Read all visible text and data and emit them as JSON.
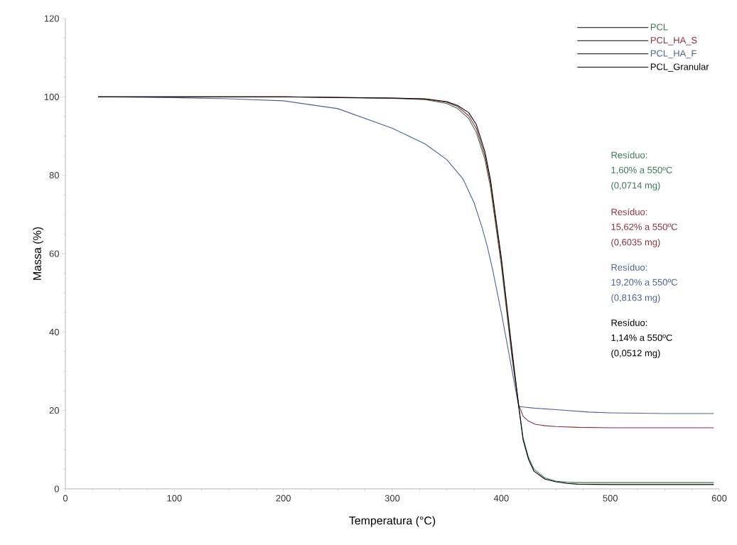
{
  "chart_data": {
    "type": "line",
    "xlabel": "Temperatura  (°C)",
    "ylabel": "Massa (%)",
    "xlim": [
      0,
      600
    ],
    "ylim": [
      0,
      120
    ],
    "xticks": [
      0,
      100,
      200,
      300,
      400,
      500,
      600
    ],
    "yticks": [
      0,
      20,
      40,
      60,
      80,
      100,
      120
    ],
    "grid": false,
    "legend": "top right",
    "line_style": "solid",
    "series": [
      {
        "name": "PCL",
        "color": "#3d7a52",
        "x": [
          30,
          100,
          200,
          300,
          330,
          350,
          360,
          370,
          377,
          385,
          390,
          395,
          400,
          405,
          410,
          416,
          420,
          425,
          430,
          440,
          450,
          460,
          470,
          500,
          550,
          595
        ],
        "values": [
          100,
          100,
          100,
          99.6,
          99.3,
          98.3,
          97,
          94.5,
          91,
          84,
          77,
          67,
          57,
          45,
          33,
          21,
          13,
          8,
          5,
          2.8,
          2,
          1.7,
          1.6,
          1.6,
          1.6,
          1.6
        ]
      },
      {
        "name": "PCL_HA_S",
        "color": "#8e2f3b",
        "x": [
          30,
          100,
          200,
          300,
          330,
          350,
          360,
          370,
          377,
          385,
          390,
          395,
          400,
          405,
          410,
          416,
          420,
          425,
          431,
          440,
          450,
          470,
          500,
          550,
          595
        ],
        "values": [
          100,
          100,
          100,
          99.7,
          99.4,
          98.6,
          97.5,
          95.2,
          92,
          85,
          78,
          68,
          58,
          46,
          34,
          21.5,
          18.5,
          17.3,
          16.5,
          16.1,
          15.9,
          15.7,
          15.6,
          15.6,
          15.6
        ]
      },
      {
        "name": "PCL_HA_F",
        "color": "#4a6495",
        "x": [
          30,
          100,
          150,
          200,
          250,
          300,
          330,
          350,
          365,
          375,
          382,
          387,
          392,
          400,
          408,
          416,
          420,
          430,
          450,
          480,
          500,
          550,
          595
        ],
        "values": [
          100,
          99.8,
          99.5,
          99,
          97,
          92,
          88,
          84,
          79,
          73,
          67,
          62,
          56,
          45,
          33,
          21,
          20.9,
          20.6,
          20.2,
          19.6,
          19.4,
          19.2,
          19.2
        ]
      },
      {
        "name": "PCL_Granular",
        "color": "#000000",
        "x": [
          30,
          100,
          200,
          300,
          330,
          350,
          360,
          370,
          377,
          385,
          390,
          395,
          400,
          405,
          410,
          416,
          420,
          425,
          430,
          440,
          450,
          460,
          470,
          500,
          550,
          595
        ],
        "values": [
          100,
          100,
          100,
          99.7,
          99.5,
          98.8,
          97.8,
          96,
          93,
          86,
          79,
          69,
          59,
          47,
          35,
          21,
          12.5,
          7.5,
          4.5,
          2.5,
          1.8,
          1.4,
          1.2,
          1.1,
          1.1,
          1.1
        ]
      }
    ],
    "annotations": [
      "Resíduo:",
      "1,60% a 550ºC",
      "(0,0714 mg)",
      "Resíduo:",
      "15,62% a 550ºC",
      "(0,6035 mg)",
      "Resíduo:",
      "19,20% a 550ºC",
      "(0,8163 mg)",
      "Resíduo:",
      "1,14% a 550ºC",
      "(0,0512 mg)"
    ]
  }
}
